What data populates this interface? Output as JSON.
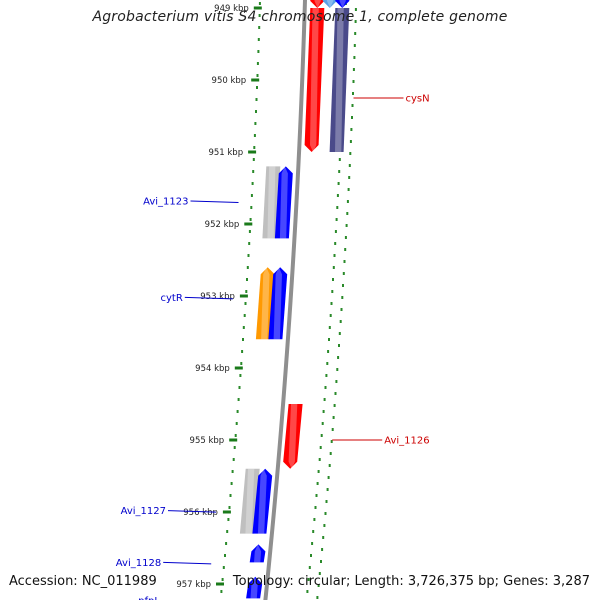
{
  "title": "Agrobacterium vitis S4 chromosome 1, complete genome",
  "footer": {
    "accession": "Accession: NC_011989",
    "summary": "Topology: circular; Length: 3,726,375 bp; Genes: 3,287"
  },
  "colors": {
    "backbone": "#8f8f8f",
    "tick": "#1a7a1a",
    "dots": "#2a8a2a",
    "cds": "#0000ff",
    "gene_grey": "#bfbfbf",
    "rna": "#ff0000",
    "misc": "#ff9900",
    "purple": "#4a4a8a",
    "label_blue": "#0000cc",
    "label_red": "#cc0000"
  },
  "ticks": [
    {
      "label": "949 kbp",
      "kbp": 949
    },
    {
      "label": "950 kbp",
      "kbp": 950
    },
    {
      "label": "951 kbp",
      "kbp": 951
    },
    {
      "label": "952 kbp",
      "kbp": 952
    },
    {
      "label": "953 kbp",
      "kbp": 953
    },
    {
      "label": "954 kbp",
      "kbp": 954
    },
    {
      "label": "955 kbp",
      "kbp": 955
    },
    {
      "label": "956 kbp",
      "kbp": 956
    },
    {
      "label": "957 kbp",
      "kbp": 957
    }
  ],
  "features": [
    {
      "name": "top-red",
      "lane": 1,
      "start": 948.3,
      "end": 949.0,
      "color": "rna",
      "strand": "-"
    },
    {
      "name": "top-lightblue",
      "lane": 2,
      "start": 948.3,
      "end": 949.0,
      "color": "cds_light",
      "strand": "-"
    },
    {
      "name": "top-blue",
      "lane": 3,
      "start": 948.3,
      "end": 949.0,
      "color": "cds",
      "strand": "-"
    },
    {
      "name": "cysN-red",
      "lane": 1,
      "start": 949.0,
      "end": 951.0,
      "color": "rna",
      "strand": "-"
    },
    {
      "name": "cysN-purple",
      "lane": 3,
      "start": 949.0,
      "end": 951.0,
      "color": "purple",
      "strand": "none"
    },
    {
      "name": "Avi_1123-grey",
      "lane": -2,
      "start": 951.2,
      "end": 952.2,
      "color": "gene_grey",
      "strand": "none"
    },
    {
      "name": "Avi_1123-blue",
      "lane": -1,
      "start": 951.2,
      "end": 952.2,
      "color": "cds",
      "strand": "+"
    },
    {
      "name": "cytR-orange",
      "lane": -2,
      "start": 952.6,
      "end": 953.6,
      "color": "misc",
      "strand": "+"
    },
    {
      "name": "cytR-blue",
      "lane": -1,
      "start": 952.6,
      "end": 953.6,
      "color": "cds",
      "strand": "+"
    },
    {
      "name": "Avi_1126-red",
      "lane": 1,
      "start": 954.5,
      "end": 955.4,
      "color": "rna",
      "strand": "-"
    },
    {
      "name": "Avi_1127-grey",
      "lane": -2,
      "start": 955.4,
      "end": 956.3,
      "color": "gene_grey",
      "strand": "none"
    },
    {
      "name": "Avi_1127-blue",
      "lane": -1,
      "start": 955.4,
      "end": 956.3,
      "color": "cds",
      "strand": "+"
    },
    {
      "name": "Avi_1128-blue",
      "lane": -1,
      "start": 956.45,
      "end": 956.7,
      "color": "cds",
      "strand": "+"
    },
    {
      "name": "pfpI-blue",
      "lane": -1,
      "start": 956.9,
      "end": 957.2,
      "color": "cds",
      "strand": "+"
    }
  ],
  "labels": [
    {
      "text": "cysN",
      "kbp": 950.25,
      "side": "right",
      "color": "label_red"
    },
    {
      "text": "Avi_1123",
      "kbp": 951.68,
      "side": "left",
      "color": "label_blue"
    },
    {
      "text": "cytR",
      "kbp": 953.02,
      "side": "left",
      "color": "label_blue"
    },
    {
      "text": "Avi_1126",
      "kbp": 955.0,
      "side": "right",
      "color": "label_red"
    },
    {
      "text": "Avi_1127",
      "kbp": 955.98,
      "side": "left",
      "color": "label_blue"
    },
    {
      "text": "Avi_1128",
      "kbp": 956.7,
      "side": "left",
      "color": "label_blue"
    },
    {
      "text": "pfpI",
      "kbp": 957.23,
      "side": "left",
      "color": "label_blue"
    }
  ]
}
